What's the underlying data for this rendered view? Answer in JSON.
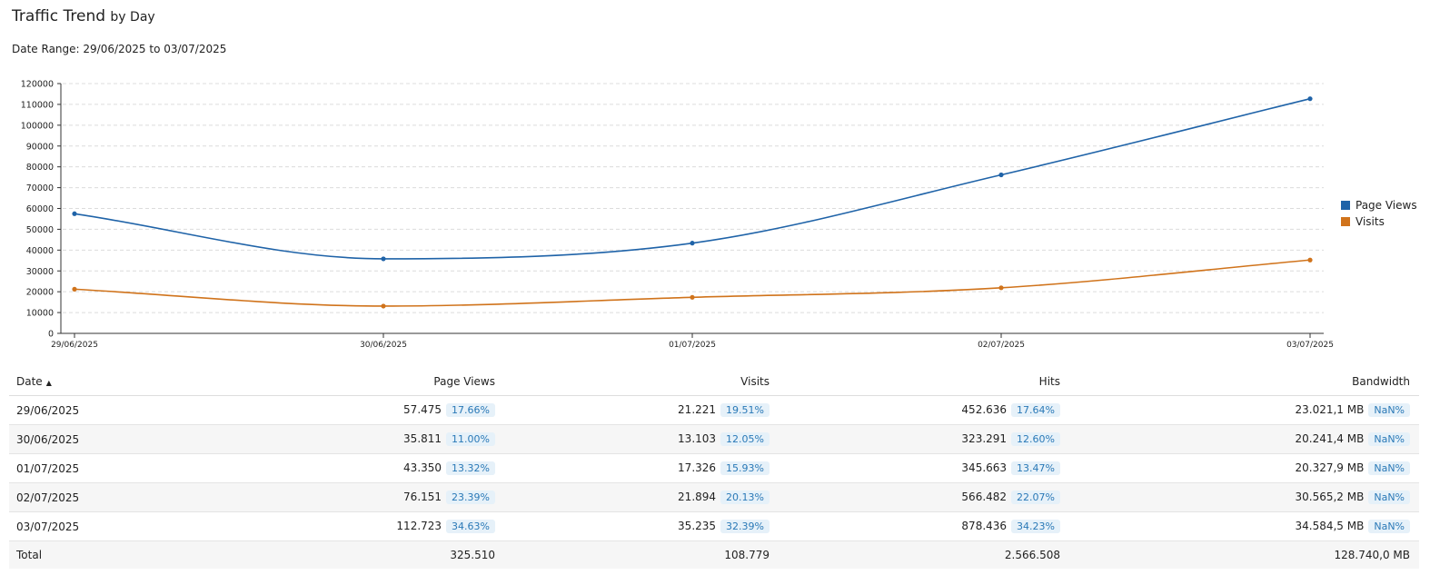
{
  "header": {
    "title": "Traffic Trend",
    "subtitle": "by Day",
    "date_range": "Date Range: 29/06/2025 to 03/07/2025"
  },
  "chart_data": {
    "type": "line",
    "x": [
      "29/06/2025",
      "30/06/2025",
      "01/07/2025",
      "02/07/2025",
      "03/07/2025"
    ],
    "series": [
      {
        "name": "Page Views",
        "color": "#1f63a8",
        "values": [
          57475,
          35811,
          43350,
          76151,
          112723
        ]
      },
      {
        "name": "Visits",
        "color": "#d0731b",
        "values": [
          21221,
          13103,
          17326,
          21894,
          35235
        ]
      }
    ],
    "ylim": [
      0,
      120000
    ],
    "yticks": [
      0,
      10000,
      20000,
      30000,
      40000,
      50000,
      60000,
      70000,
      80000,
      90000,
      100000,
      110000,
      120000
    ],
    "grid": true,
    "legend_position": "right"
  },
  "table": {
    "columns": [
      "Date",
      "Page Views",
      "Visits",
      "Hits",
      "Bandwidth"
    ],
    "sort_icon": "sort-ascending-icon",
    "rows": [
      {
        "date": "29/06/2025",
        "page_views": "57.475",
        "page_views_pct": "17.66%",
        "visits": "21.221",
        "visits_pct": "19.51%",
        "hits": "452.636",
        "hits_pct": "17.64%",
        "bandwidth": "23.021,1 MB",
        "bandwidth_pct": "NaN%"
      },
      {
        "date": "30/06/2025",
        "page_views": "35.811",
        "page_views_pct": "11.00%",
        "visits": "13.103",
        "visits_pct": "12.05%",
        "hits": "323.291",
        "hits_pct": "12.60%",
        "bandwidth": "20.241,4 MB",
        "bandwidth_pct": "NaN%"
      },
      {
        "date": "01/07/2025",
        "page_views": "43.350",
        "page_views_pct": "13.32%",
        "visits": "17.326",
        "visits_pct": "15.93%",
        "hits": "345.663",
        "hits_pct": "13.47%",
        "bandwidth": "20.327,9 MB",
        "bandwidth_pct": "NaN%"
      },
      {
        "date": "02/07/2025",
        "page_views": "76.151",
        "page_views_pct": "23.39%",
        "visits": "21.894",
        "visits_pct": "20.13%",
        "hits": "566.482",
        "hits_pct": "22.07%",
        "bandwidth": "30.565,2 MB",
        "bandwidth_pct": "NaN%"
      },
      {
        "date": "03/07/2025",
        "page_views": "112.723",
        "page_views_pct": "34.63%",
        "visits": "35.235",
        "visits_pct": "32.39%",
        "hits": "878.436",
        "hits_pct": "34.23%",
        "bandwidth": "34.584,5 MB",
        "bandwidth_pct": "NaN%"
      }
    ],
    "total": {
      "label": "Total",
      "page_views": "325.510",
      "visits": "108.779",
      "hits": "2.566.508",
      "bandwidth": "128.740,0 MB"
    }
  }
}
